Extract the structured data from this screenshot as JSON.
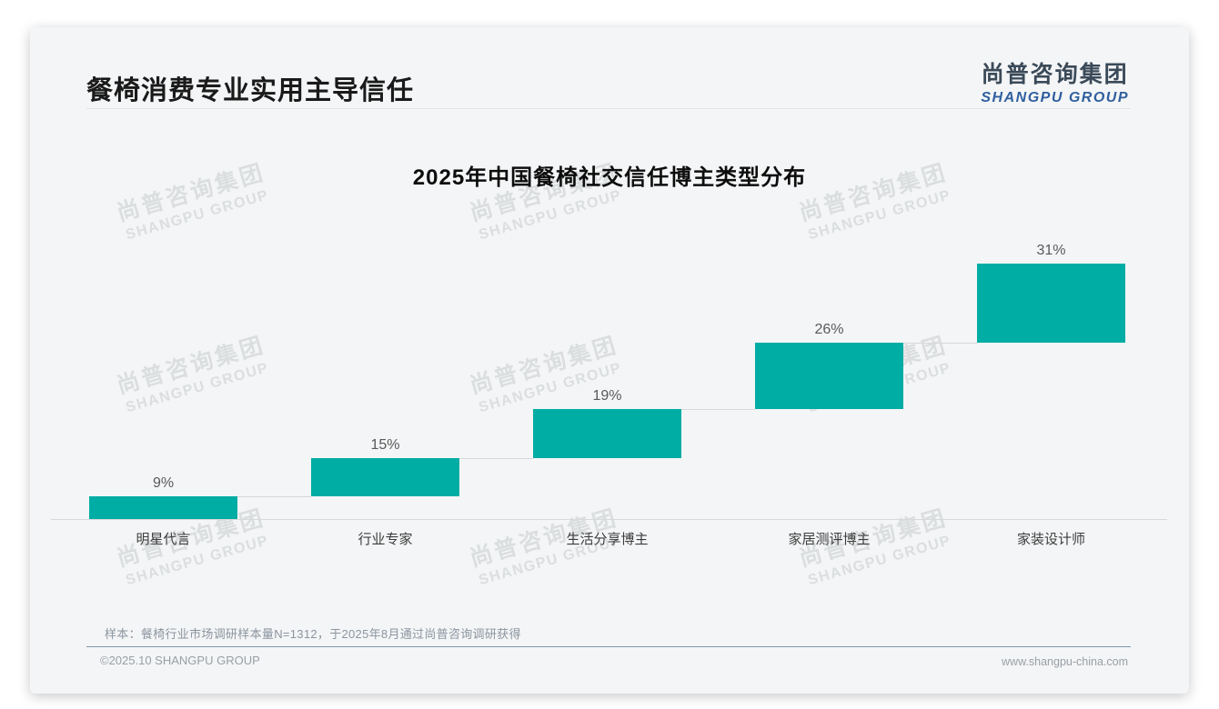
{
  "page": {
    "title": "餐椅消费专业实用主导信任",
    "logo": {
      "cn": "尚普咨询集团",
      "en": "SHANGPU GROUP"
    },
    "watermark": {
      "line1": "尚普咨询集团",
      "line2": "SHANGPU GROUP"
    },
    "footnote": "样本：餐椅行业市场调研样本量N=1312，于2025年8月通过尚普咨询调研获得",
    "footer_left": "©2025.10 SHANGPU GROUP",
    "footer_right": "www.shangpu-china.com"
  },
  "colors": {
    "bar": "#00ada4",
    "card_background": "#f4f5f6",
    "footer_divider": "#8096ab",
    "logo_cn": "#3b4a59",
    "logo_en": "#2f5f9f",
    "axis_line": "#d7d8d9"
  },
  "chart_data": {
    "type": "bar",
    "subtype": "waterfall-step",
    "title": "2025年中国餐椅社交信任博主类型分布",
    "categories": [
      "明星代言",
      "行业专家",
      "生活分享博主",
      "家居测评博主",
      "家装设计师"
    ],
    "values": [
      9,
      15,
      19,
      26,
      31
    ],
    "value_labels": [
      "9%",
      "15%",
      "19%",
      "26%",
      "31%"
    ],
    "cumulative_tops": [
      9,
      24,
      43,
      69,
      100
    ],
    "unit": "%",
    "ylim": [
      0,
      100
    ],
    "grid": false,
    "legend": "none",
    "bar_color": "#00ada4",
    "connector_color": "#d7d8d9"
  }
}
